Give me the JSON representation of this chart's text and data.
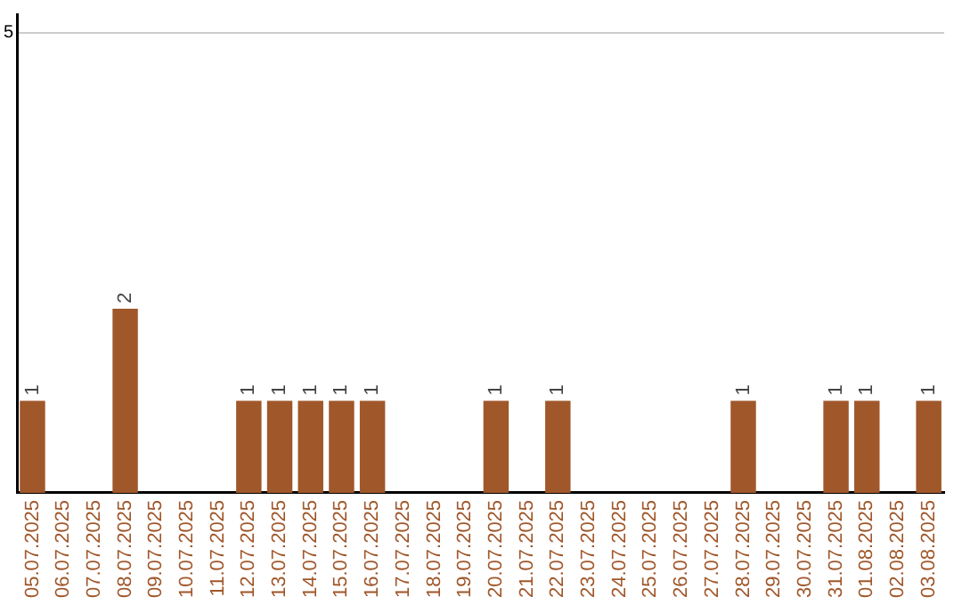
{
  "chart_data": {
    "type": "bar",
    "categories": [
      "05.07.2025",
      "06.07.2025",
      "07.07.2025",
      "08.07.2025",
      "09.07.2025",
      "10.07.2025",
      "11.07.2025",
      "12.07.2025",
      "13.07.2025",
      "14.07.2025",
      "15.07.2025",
      "16.07.2025",
      "17.07.2025",
      "18.07.2025",
      "19.07.2025",
      "20.07.2025",
      "21.07.2025",
      "22.07.2025",
      "23.07.2025",
      "24.07.2025",
      "25.07.2025",
      "26.07.2025",
      "27.07.2025",
      "28.07.2025",
      "29.07.2025",
      "30.07.2025",
      "31.07.2025",
      "01.08.2025",
      "02.08.2025",
      "03.08.2025"
    ],
    "values": [
      1,
      0,
      0,
      2,
      0,
      0,
      0,
      1,
      1,
      1,
      1,
      1,
      0,
      0,
      0,
      1,
      0,
      1,
      0,
      0,
      0,
      0,
      0,
      1,
      0,
      0,
      1,
      1,
      0,
      1
    ],
    "value_labels": [
      "1",
      null,
      null,
      "2",
      null,
      null,
      null,
      "1",
      "1",
      "1",
      "1",
      "1",
      null,
      null,
      null,
      "1",
      null,
      "1",
      null,
      null,
      null,
      null,
      null,
      "1",
      null,
      null,
      "1",
      "1",
      null,
      "1"
    ],
    "color": "#a0572a",
    "ylim": [
      0,
      5.2
    ],
    "yticks": [
      5
    ],
    "grid": "y",
    "legend": false
  }
}
